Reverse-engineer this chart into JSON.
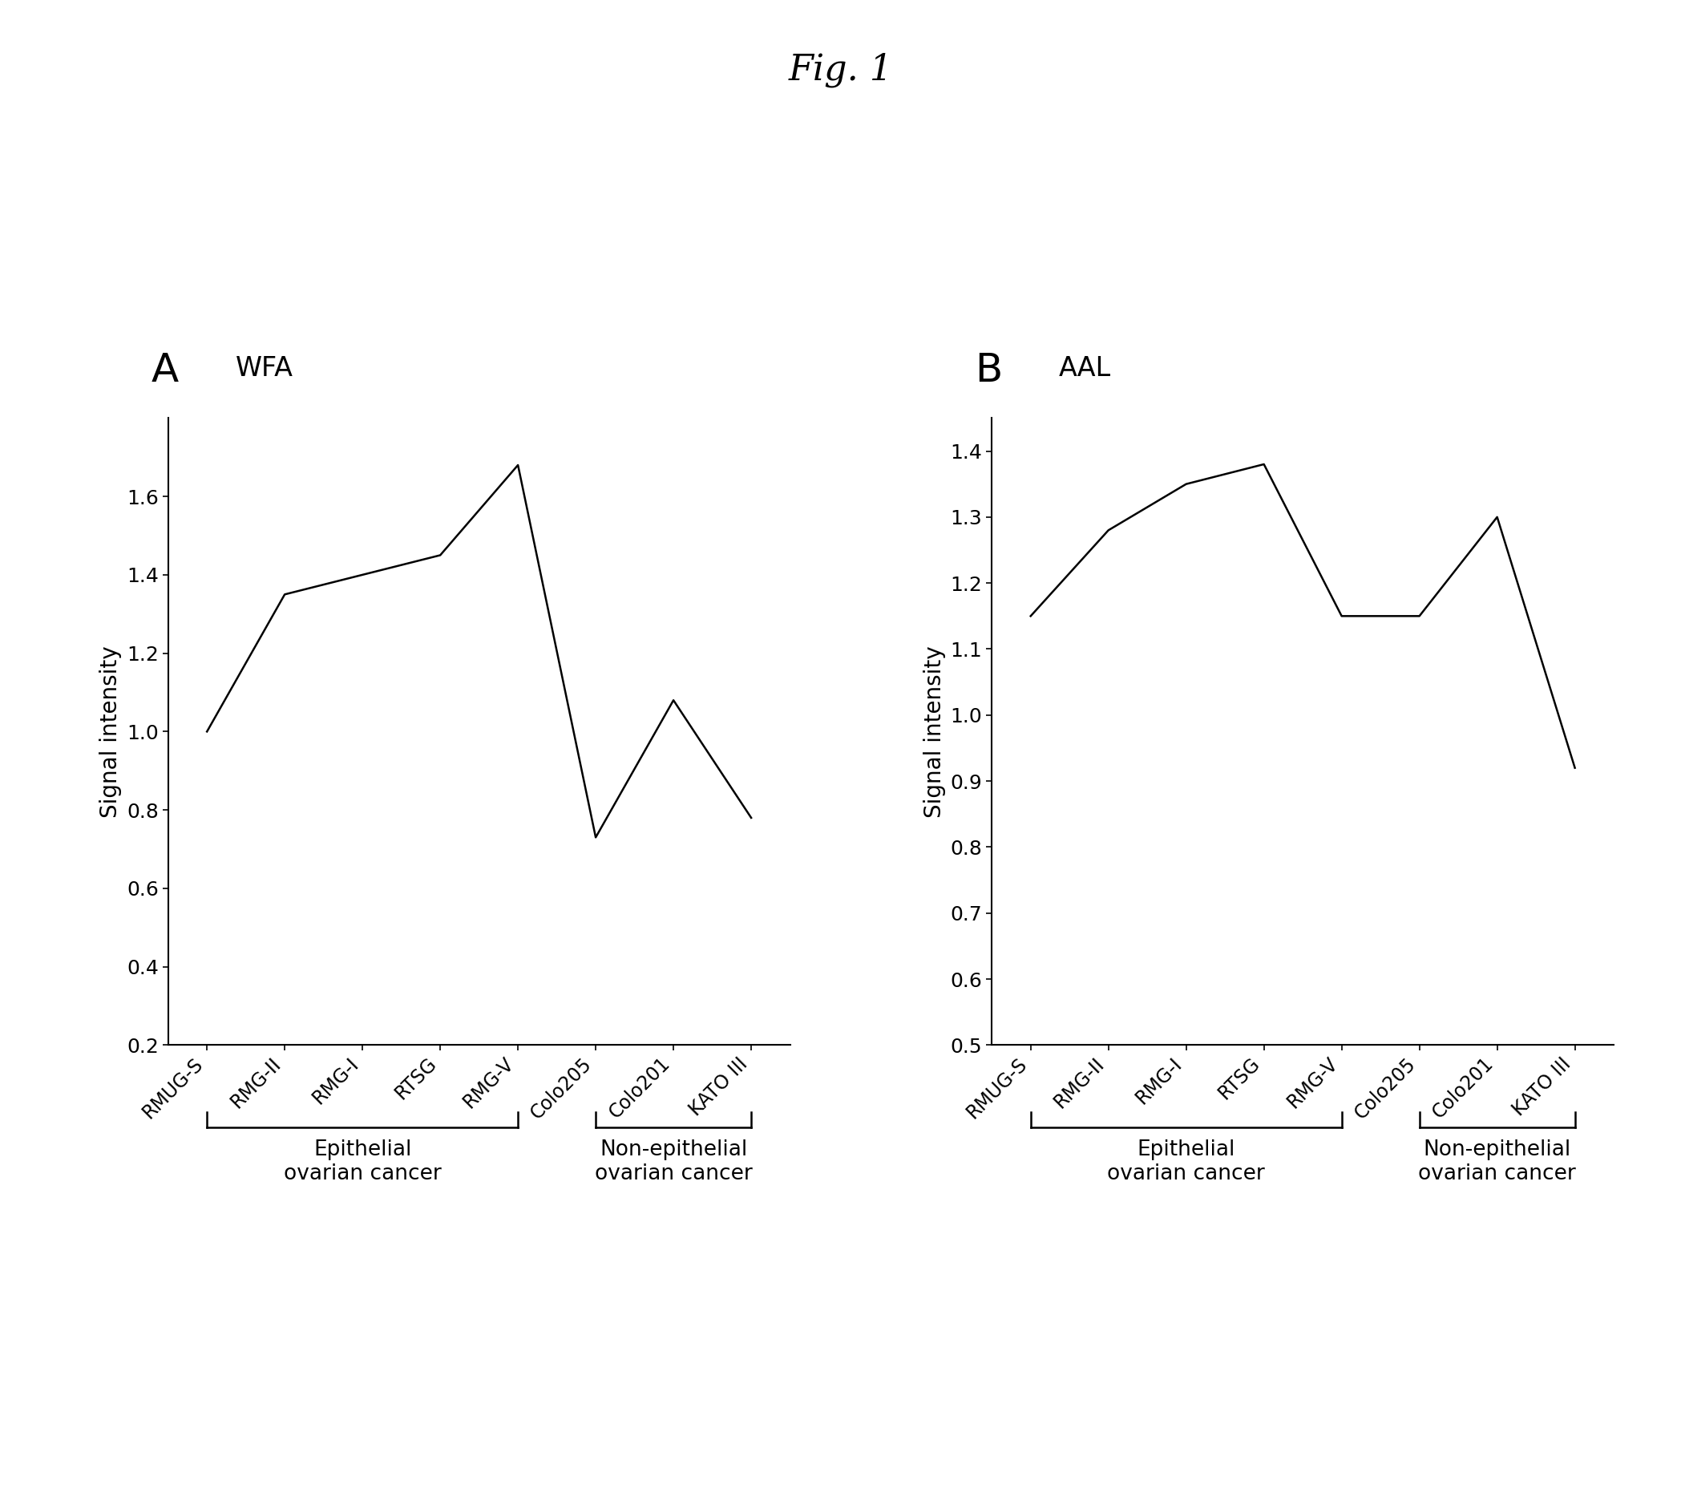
{
  "title": "Fig. 1",
  "panel_A_label": "A",
  "panel_B_label": "B",
  "panel_A_title": "WFA",
  "panel_B_title": "AAL",
  "ylabel": "Signal intensity",
  "categories": [
    "RMUG-S",
    "RMG-II",
    "RMG-I",
    "RTSG",
    "RMG-V",
    "Colo205",
    "Colo201",
    "KATO III"
  ],
  "panel_A_values": [
    1.0,
    1.35,
    1.4,
    1.45,
    1.68,
    0.73,
    1.08,
    0.78
  ],
  "panel_B_values": [
    1.15,
    1.28,
    1.35,
    1.38,
    1.15,
    1.15,
    1.3,
    0.92
  ],
  "panel_A_ylim": [
    0.2,
    1.8
  ],
  "panel_A_yticks": [
    0.2,
    0.4,
    0.6,
    0.8,
    1.0,
    1.2,
    1.4,
    1.6
  ],
  "panel_B_ylim": [
    0.5,
    1.45
  ],
  "panel_B_yticks": [
    0.5,
    0.6,
    0.7,
    0.8,
    0.9,
    1.0,
    1.1,
    1.2,
    1.3,
    1.4
  ],
  "epithelial_indices": [
    0,
    1,
    2,
    3,
    4
  ],
  "non_epithelial_indices": [
    5,
    6,
    7
  ],
  "epithelial_label": "Epithelial\novarian cancer",
  "non_epithelial_label": "Non-epithelial\novarian cancer",
  "line_color": "#000000",
  "bg_color": "#ffffff",
  "title_fontsize": 32,
  "panel_label_fontsize": 36,
  "panel_title_fontsize": 24,
  "tick_fontsize": 18,
  "ylabel_fontsize": 20,
  "group_label_fontsize": 19,
  "xtick_fontsize": 17
}
